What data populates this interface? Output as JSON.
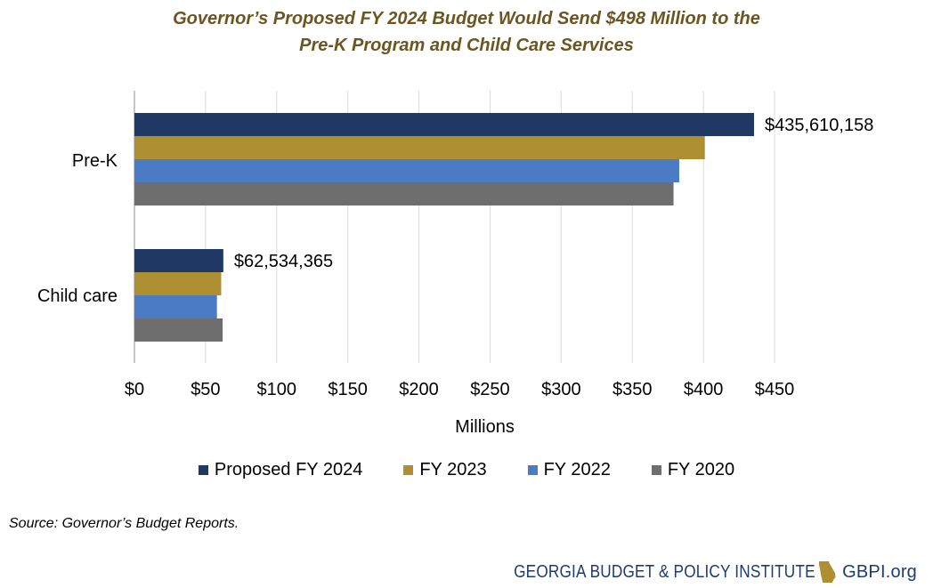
{
  "title": {
    "line1": "Governor’s Proposed FY 2024 Budget Would Send $498 Million to the",
    "line2": "Pre-K Program and Child Care Services"
  },
  "chart_data": {
    "type": "bar",
    "orientation": "horizontal",
    "categories": [
      "Pre-K",
      "Child care"
    ],
    "series": [
      {
        "name": "Proposed FY 2024",
        "color": "#203864",
        "values": [
          435.6,
          62.5
        ]
      },
      {
        "name": "FY 2023",
        "color": "#ae8f32",
        "values": [
          401,
          61
        ]
      },
      {
        "name": "FY 2022",
        "color": "#4a7bc4",
        "values": [
          383,
          58
        ]
      },
      {
        "name": "FY 2020",
        "color": "#6e6e6e",
        "values": [
          379,
          62
        ]
      }
    ],
    "data_labels": [
      {
        "category": "Pre-K",
        "series": "Proposed FY 2024",
        "text": "$435,610,158"
      },
      {
        "category": "Child care",
        "series": "Proposed FY 2024",
        "text": "$62,534,365"
      }
    ],
    "xlabel": "Millions",
    "ylabel": "",
    "xlim": [
      0,
      450
    ],
    "ticks": [
      0,
      50,
      100,
      150,
      200,
      250,
      300,
      350,
      400,
      450
    ],
    "tick_labels": [
      "$0",
      "$50",
      "$100",
      "$150",
      "$200",
      "$250",
      "$300",
      "$350",
      "$400",
      "$450"
    ],
    "grid": true,
    "legend": "bottom"
  },
  "source": "Source: Governor’s Budget Reports.",
  "footer": {
    "org_name": "GEORGIA BUDGET & POLICY INSTITUTE",
    "site": "GBPI.org",
    "logo_icon": "georgia-state-icon",
    "logo_color": "#ae8f32",
    "text_color": "#1f3b70"
  }
}
